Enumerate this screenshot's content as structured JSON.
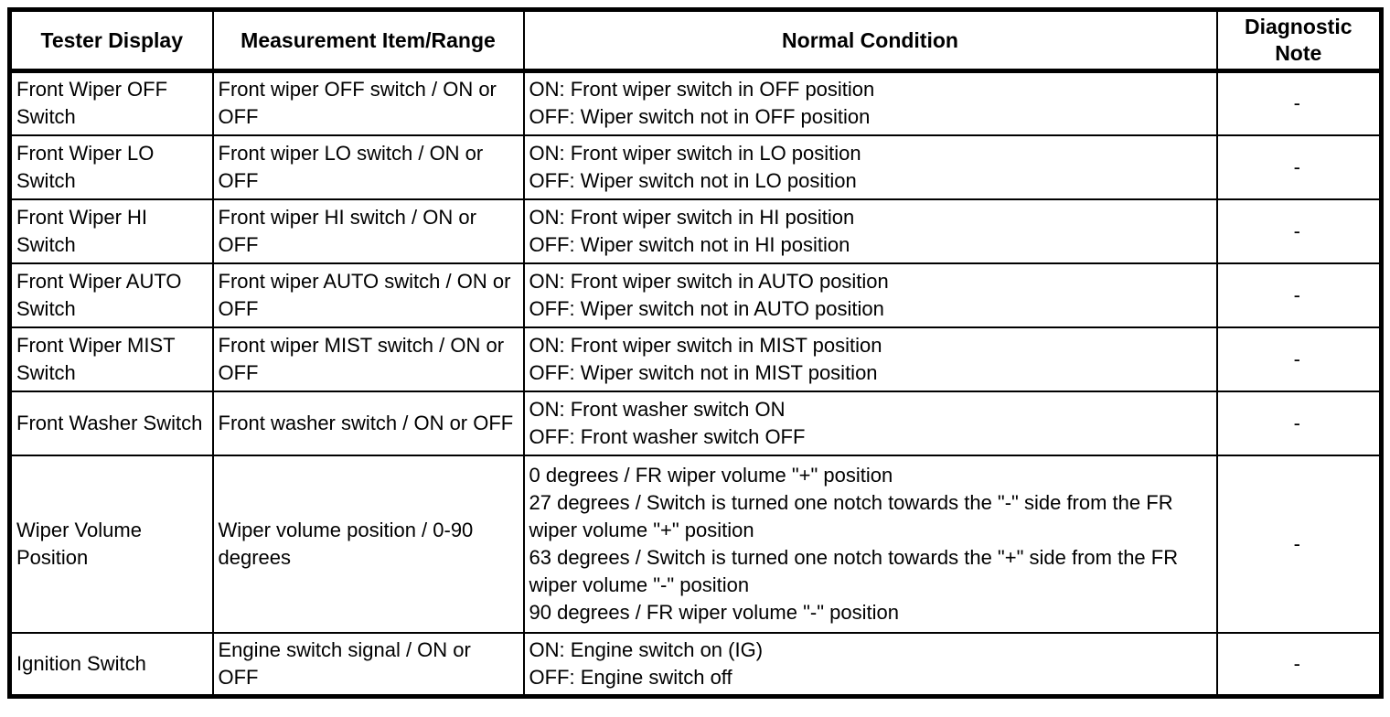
{
  "table": {
    "columns": [
      "Tester Display",
      "Measurement Item/Range",
      "Normal Condition",
      "Diagnostic Note"
    ],
    "rows": [
      {
        "tester_display": "Front Wiper OFF Switch",
        "measurement": "Front wiper OFF switch / ON or OFF",
        "normal_condition": "ON: Front wiper switch in OFF position\nOFF: Wiper switch not in OFF position",
        "diagnostic_note": "-"
      },
      {
        "tester_display": "Front Wiper LO Switch",
        "measurement": "Front wiper LO switch / ON or OFF",
        "normal_condition": "ON: Front wiper switch in LO position\nOFF: Wiper switch not in LO position",
        "diagnostic_note": "-"
      },
      {
        "tester_display": "Front Wiper HI Switch",
        "measurement": "Front wiper HI switch / ON or OFF",
        "normal_condition": "ON: Front wiper switch in HI position\nOFF: Wiper switch not in HI position",
        "diagnostic_note": "-"
      },
      {
        "tester_display": "Front Wiper AUTO Switch",
        "measurement": "Front wiper AUTO switch / ON or OFF",
        "normal_condition": "ON: Front wiper switch in AUTO position\nOFF: Wiper switch not in AUTO position",
        "diagnostic_note": "-"
      },
      {
        "tester_display": "Front Wiper MIST Switch",
        "measurement": "Front wiper MIST switch / ON or OFF",
        "normal_condition": "ON: Front wiper switch in MIST position\nOFF: Wiper switch not in MIST position",
        "diagnostic_note": "-"
      },
      {
        "tester_display": "Front Washer Switch",
        "measurement": "Front washer switch / ON or OFF",
        "normal_condition": "ON: Front washer switch ON\nOFF: Front washer switch OFF",
        "diagnostic_note": "-"
      },
      {
        "tester_display": "Wiper Volume Position",
        "measurement": "Wiper volume position / 0-90 degrees",
        "normal_condition": "0 degrees / FR wiper volume \"+\" position\n27 degrees / Switch is turned one notch towards the \"-\" side from the FR wiper volume \"+\" position\n63 degrees / Switch is turned one notch towards the \"+\" side from the FR wiper volume \"-\" position\n90 degrees / FR wiper volume \"-\" position",
        "diagnostic_note": "-"
      },
      {
        "tester_display": "Ignition Switch",
        "measurement": "Engine switch signal / ON or OFF",
        "normal_condition": "ON: Engine switch on (IG)\nOFF: Engine switch off",
        "diagnostic_note": "-"
      }
    ]
  }
}
